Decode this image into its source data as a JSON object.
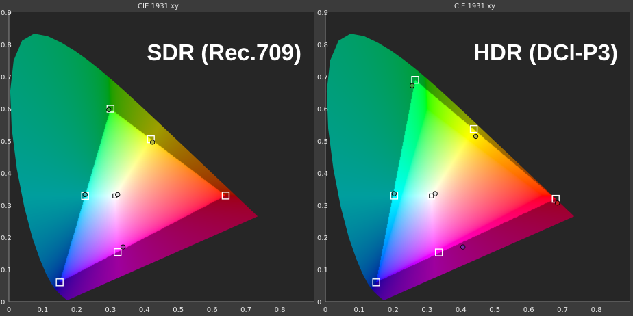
{
  "chart_data": [
    {
      "type": "scatter",
      "title": "CIE 1931 xy",
      "label": "SDR (Rec.709)",
      "xlim": [
        0,
        0.9
      ],
      "ylim": [
        0,
        0.9
      ],
      "xticks": [
        "0",
        "0.1",
        "0.2",
        "0.3",
        "0.4",
        "0.5",
        "0.6",
        "0.7",
        "0.8"
      ],
      "yticks": [
        "0",
        "0.1",
        "0.2",
        "0.3",
        "0.4",
        "0.5",
        "0.6",
        "0.7",
        "0.8",
        "0.9"
      ],
      "gamut": {
        "red": [
          0.64,
          0.33
        ],
        "green": [
          0.3,
          0.6
        ],
        "blue": [
          0.15,
          0.06
        ],
        "white": [
          0.3127,
          0.329
        ]
      },
      "series": [
        {
          "role": "targets",
          "marker": "square",
          "points": [
            {
              "id": "red",
              "x": 0.64,
              "y": 0.33
            },
            {
              "id": "green",
              "x": 0.3,
              "y": 0.6
            },
            {
              "id": "blue",
              "x": 0.15,
              "y": 0.06
            },
            {
              "id": "cyan",
              "x": 0.225,
              "y": 0.329
            },
            {
              "id": "magenta",
              "x": 0.321,
              "y": 0.154
            },
            {
              "id": "yellow",
              "x": 0.419,
              "y": 0.505
            },
            {
              "id": "white",
              "x": 0.313,
              "y": 0.329
            }
          ]
        },
        {
          "role": "measured",
          "marker": "circle",
          "points": [
            {
              "id": "green",
              "x": 0.295,
              "y": 0.597,
              "color": "#3fa23f"
            },
            {
              "id": "yellow",
              "x": 0.424,
              "y": 0.496,
              "color": "#b8b83a"
            },
            {
              "id": "cyan",
              "x": 0.225,
              "y": 0.333,
              "color": "#3ab8b8"
            },
            {
              "id": "white",
              "x": 0.321,
              "y": 0.333,
              "color": "#e6e6e6"
            },
            {
              "id": "magenta",
              "x": 0.337,
              "y": 0.17,
              "color": "#b03ab0"
            }
          ]
        }
      ]
    },
    {
      "type": "scatter",
      "title": "CIE 1931 xy",
      "label": "HDR (DCI-P3)",
      "xlim": [
        0,
        0.9
      ],
      "ylim": [
        0,
        0.9
      ],
      "xticks": [
        "0",
        "0.1",
        "0.2",
        "0.3",
        "0.4",
        "0.5",
        "0.6",
        "0.7",
        "0.8"
      ],
      "yticks": [
        "0",
        "0.1",
        "0.2",
        "0.3",
        "0.4",
        "0.5",
        "0.6",
        "0.7",
        "0.8",
        "0.9"
      ],
      "gamut": {
        "red": [
          0.68,
          0.32
        ],
        "green": [
          0.265,
          0.69
        ],
        "blue": [
          0.15,
          0.06
        ],
        "white": [
          0.3127,
          0.329
        ]
      },
      "series": [
        {
          "role": "targets",
          "marker": "square",
          "points": [
            {
              "id": "red",
              "x": 0.68,
              "y": 0.32
            },
            {
              "id": "green",
              "x": 0.265,
              "y": 0.69
            },
            {
              "id": "blue",
              "x": 0.15,
              "y": 0.06
            },
            {
              "id": "cyan",
              "x": 0.203,
              "y": 0.33
            },
            {
              "id": "magenta",
              "x": 0.335,
              "y": 0.153
            },
            {
              "id": "yellow",
              "x": 0.438,
              "y": 0.537
            },
            {
              "id": "white",
              "x": 0.313,
              "y": 0.329
            }
          ]
        },
        {
          "role": "measured",
          "marker": "circle",
          "points": [
            {
              "id": "green",
              "x": 0.256,
              "y": 0.672,
              "color": "#3fa23f"
            },
            {
              "id": "yellow",
              "x": 0.444,
              "y": 0.514,
              "color": "#b8b83a"
            },
            {
              "id": "cyan",
              "x": 0.203,
              "y": 0.336,
              "color": "#3ab8b8"
            },
            {
              "id": "white",
              "x": 0.324,
              "y": 0.336,
              "color": "#e6e6e6"
            },
            {
              "id": "magenta",
              "x": 0.406,
              "y": 0.17,
              "color": "#7a2aa8"
            },
            {
              "id": "red",
              "x": 0.685,
              "y": 0.307,
              "color": "#c02020"
            }
          ]
        }
      ]
    }
  ],
  "colors": {
    "page_background": "#3b3b3b",
    "plot_background": "#262626",
    "text": "#e6e6e6",
    "target_marker_fill": "#ffffff",
    "target_marker_stroke": "#000000"
  }
}
